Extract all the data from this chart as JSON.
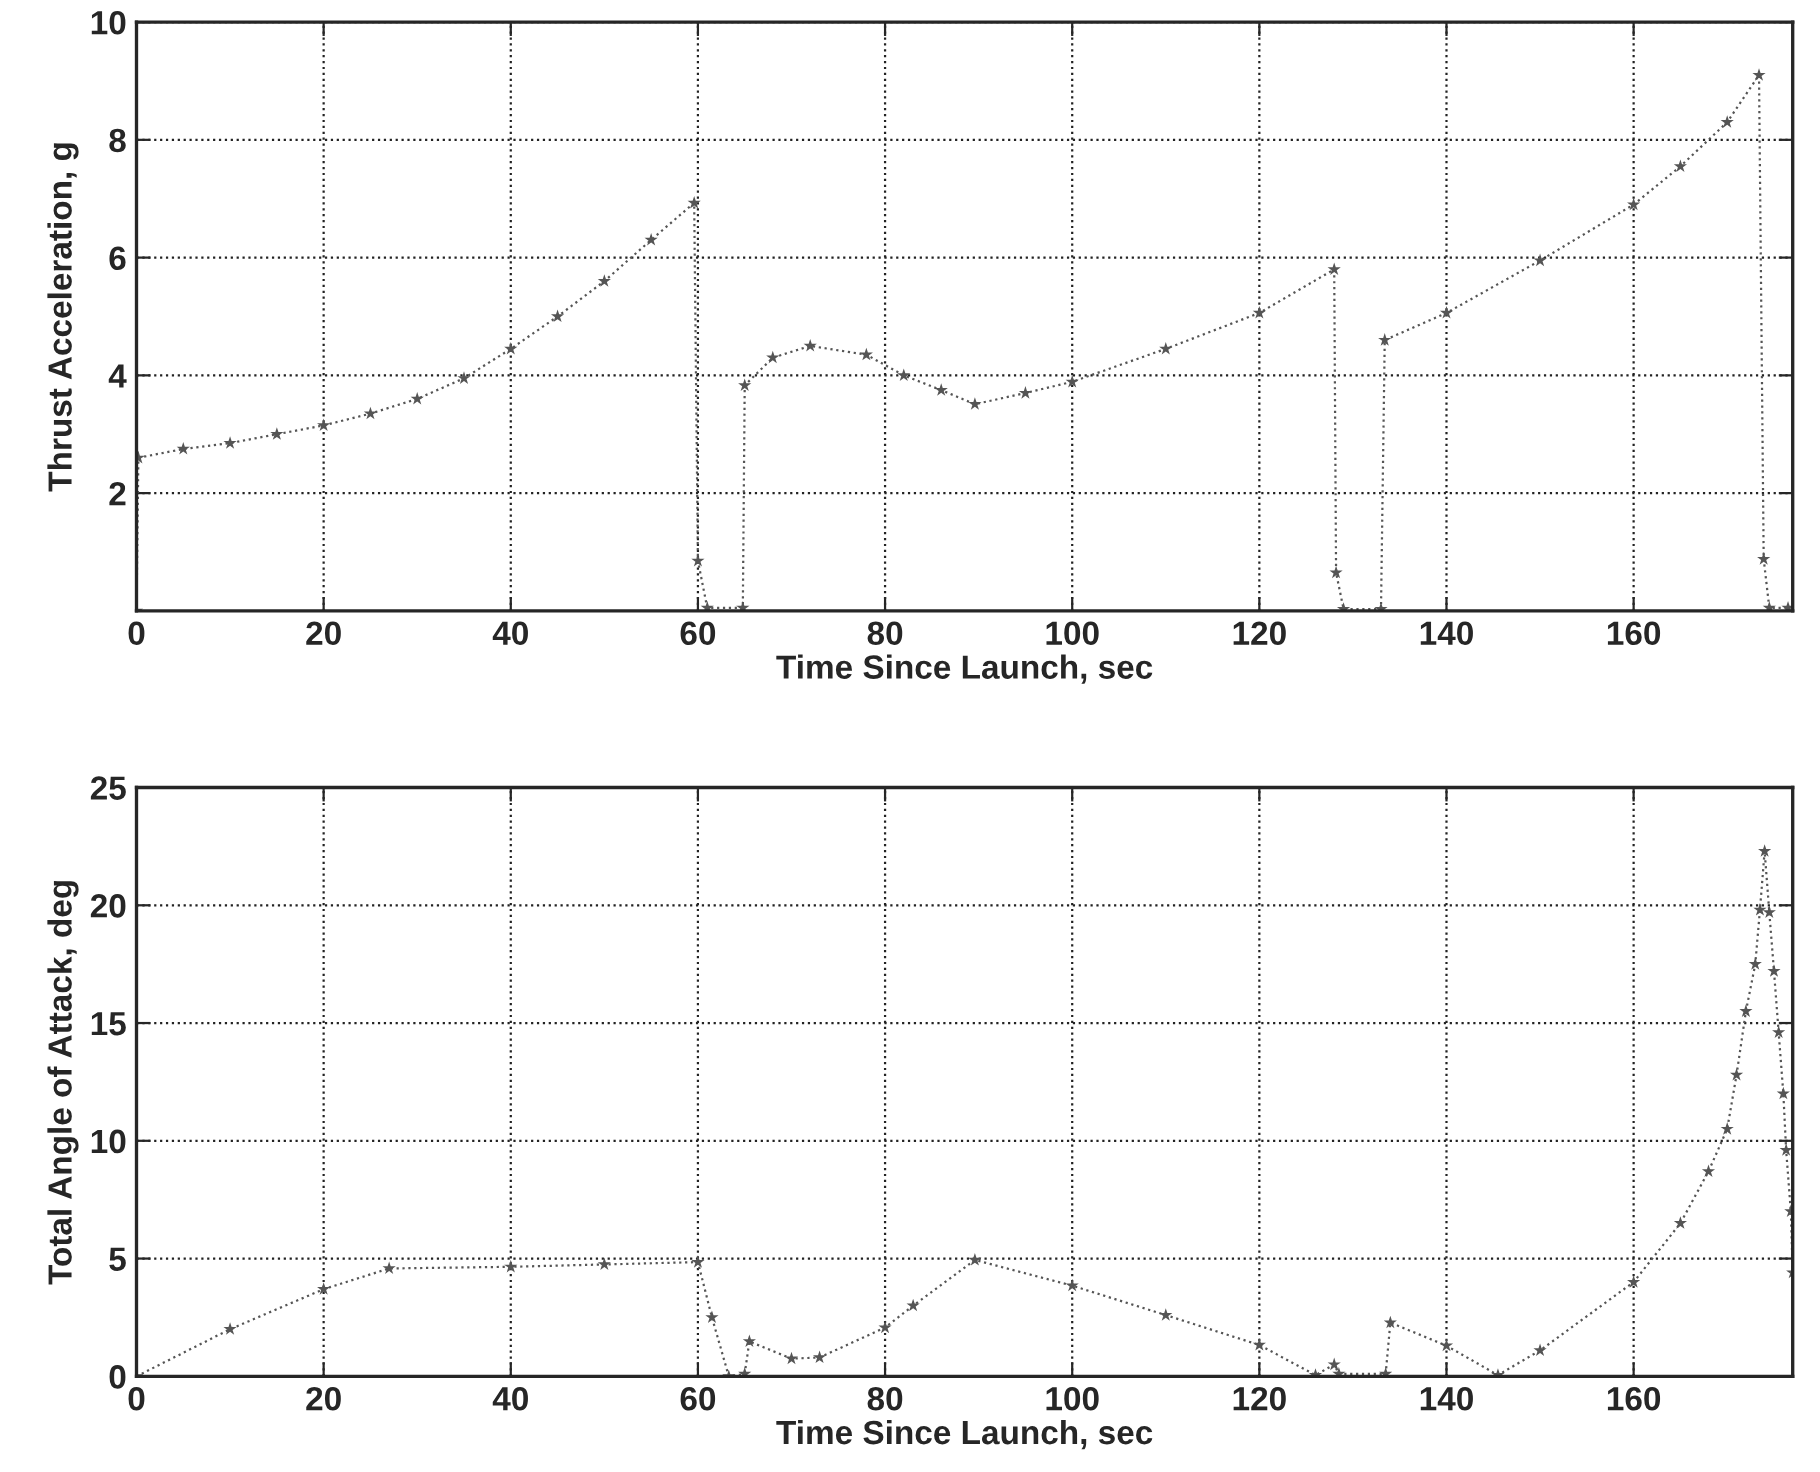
{
  "chart_data": [
    {
      "type": "line",
      "xlabel": "Time Since Launch, sec",
      "ylabel": "Thrust Acceleration, g",
      "xlim": [
        0,
        177
      ],
      "xticks": [
        0,
        20,
        40,
        60,
        80,
        100,
        120,
        140,
        160
      ],
      "ylim": [
        0,
        10
      ],
      "yticks": [
        2,
        4,
        6,
        8,
        10
      ],
      "grid": true,
      "marker": "star",
      "line_style": "dotted",
      "series": [
        {
          "color": "#555555",
          "x": [
            0,
            0.2,
            5,
            10,
            15,
            20,
            25,
            30,
            35,
            40,
            45,
            50,
            55,
            59.6,
            60,
            61,
            64.8,
            65,
            68,
            72,
            78,
            82,
            86,
            89.6,
            95,
            100,
            110,
            120,
            128,
            128.2,
            129,
            133,
            133.4,
            140,
            150,
            160,
            165,
            170,
            173.4,
            173.9,
            174.5,
            176.5
          ],
          "values": [
            0,
            2.6,
            2.75,
            2.85,
            3.0,
            3.15,
            3.35,
            3.6,
            3.95,
            4.45,
            5.0,
            5.6,
            6.3,
            6.93,
            0.85,
            0.05,
            0.05,
            3.83,
            4.3,
            4.5,
            4.35,
            4.0,
            3.75,
            3.51,
            3.7,
            3.89,
            4.45,
            5.06,
            5.8,
            0.65,
            0.03,
            0.03,
            4.6,
            5.06,
            5.95,
            6.9,
            7.55,
            8.3,
            9.1,
            0.88,
            0.05,
            0.05
          ]
        }
      ]
    },
    {
      "type": "line",
      "xlabel": "Time Since Launch, sec",
      "ylabel": "Total Angle of Attack, deg",
      "xlim": [
        0,
        177
      ],
      "xticks": [
        0,
        20,
        40,
        60,
        80,
        100,
        120,
        140,
        160
      ],
      "ylim": [
        0,
        25
      ],
      "yticks": [
        0,
        5,
        10,
        15,
        20,
        25
      ],
      "grid": true,
      "marker": "star",
      "line_style": "dotted",
      "series": [
        {
          "color": "#555555",
          "x": [
            0,
            10,
            20,
            27,
            40,
            50,
            60,
            61.5,
            63.3,
            65,
            65.5,
            70,
            73,
            80,
            83,
            89.6,
            100,
            110,
            120,
            126,
            128,
            128.5,
            133.5,
            134,
            140,
            145.5,
            150,
            160,
            165,
            168,
            170,
            171,
            172,
            173,
            173.5,
            174,
            174.5,
            175,
            175.5,
            176,
            176.3,
            176.8,
            177
          ],
          "values": [
            0,
            2.0,
            3.7,
            4.58,
            4.65,
            4.75,
            4.85,
            2.5,
            0,
            0.1,
            1.48,
            0.75,
            0.8,
            2.07,
            3.0,
            4.94,
            3.85,
            2.6,
            1.33,
            0.05,
            0.5,
            0.1,
            0.1,
            2.28,
            1.3,
            0.05,
            1.1,
            4.0,
            6.5,
            8.7,
            10.5,
            12.8,
            15.5,
            17.5,
            19.8,
            22.3,
            19.7,
            17.2,
            14.6,
            12.0,
            9.6,
            7.0,
            4.4
          ]
        }
      ]
    }
  ]
}
